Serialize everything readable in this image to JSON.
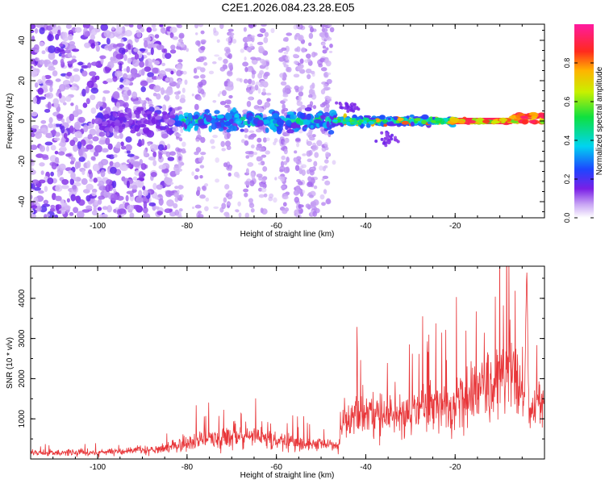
{
  "figure_title": "C2E1.2026.084.23.28.E05",
  "colors": {
    "snr_line": "#e8373a",
    "spectrogram_base": "#7a1fe6",
    "axis": "#000000"
  },
  "chart_data": [
    {
      "type": "heatmap",
      "name": "spectrogram",
      "xlabel": "Height of straight line (km)",
      "ylabel": "Frequency (Hz)",
      "xlim": [
        -115,
        0
      ],
      "ylim": [
        -48,
        48
      ],
      "xticks": [
        -100,
        -80,
        -60,
        -40,
        -20
      ],
      "yticks": [
        -40,
        -20,
        0,
        20,
        40
      ],
      "xtick_labels": [
        "-100",
        "-80",
        "-60",
        "-40",
        "-20"
      ],
      "ytick_labels": [
        "-40",
        "-20",
        "0",
        "20",
        "40"
      ],
      "colorbar": {
        "label": "Normalized spectral amplitude",
        "range": [
          0,
          1
        ],
        "ticks": [
          0,
          0.2,
          0.4,
          0.6,
          0.8
        ],
        "tick_labels": [
          "0.0",
          "0.2",
          "0.4",
          "0.6",
          "0.8"
        ],
        "colormap": "hsv-like (white/violet → blue → cyan → green → yellow → red → magenta)"
      },
      "regions": [
        {
          "x_range": [
            -115,
            -83
          ],
          "description": "broadband noise",
          "amplitude": 0.05
        },
        {
          "x_range": [
            -83,
            -47
          ],
          "description": "central band, moderate",
          "amplitude": 0.25
        },
        {
          "x_range": [
            -47,
            -20
          ],
          "description": "central band, strong",
          "amplitude": 0.45
        },
        {
          "x_range": [
            -20,
            0
          ],
          "description": "narrow tone near 0 Hz",
          "amplitude": 0.95
        }
      ]
    },
    {
      "type": "line",
      "name": "snr",
      "xlabel": "Height of straight line (km)",
      "ylabel": "SNR (10 * v/v)",
      "xlim": [
        -115,
        0
      ],
      "ylim": [
        0,
        4800
      ],
      "xticks": [
        -100,
        -80,
        -60,
        -40,
        -20
      ],
      "yticks": [
        1000,
        2000,
        3000,
        4000
      ],
      "xtick_labels": [
        "-100",
        "-80",
        "-60",
        "-40",
        "-20"
      ],
      "ytick_labels": [
        "1000",
        "2000",
        "3000",
        "4000"
      ],
      "series": [
        {
          "name": "SNR",
          "trend_points": [
            {
              "x": -115,
              "y": 150
            },
            {
              "x": -100,
              "y": 160
            },
            {
              "x": -85,
              "y": 260
            },
            {
              "x": -75,
              "y": 500
            },
            {
              "x": -70,
              "y": 600
            },
            {
              "x": -60,
              "y": 450
            },
            {
              "x": -50,
              "y": 350
            },
            {
              "x": -46,
              "y": 350
            },
            {
              "x": -45,
              "y": 1000
            },
            {
              "x": -40,
              "y": 1200
            },
            {
              "x": -35,
              "y": 1000
            },
            {
              "x": -30,
              "y": 1200
            },
            {
              "x": -20,
              "y": 1400
            },
            {
              "x": -12,
              "y": 1750
            },
            {
              "x": -8,
              "y": 2200
            },
            {
              "x": -5,
              "y": 1500
            },
            {
              "x": -3,
              "y": 1200
            },
            {
              "x": 0,
              "y": 1500
            }
          ],
          "peaks": [
            {
              "x": -7,
              "y": 2900
            },
            {
              "x": -4,
              "y": 4800
            }
          ]
        }
      ]
    }
  ]
}
